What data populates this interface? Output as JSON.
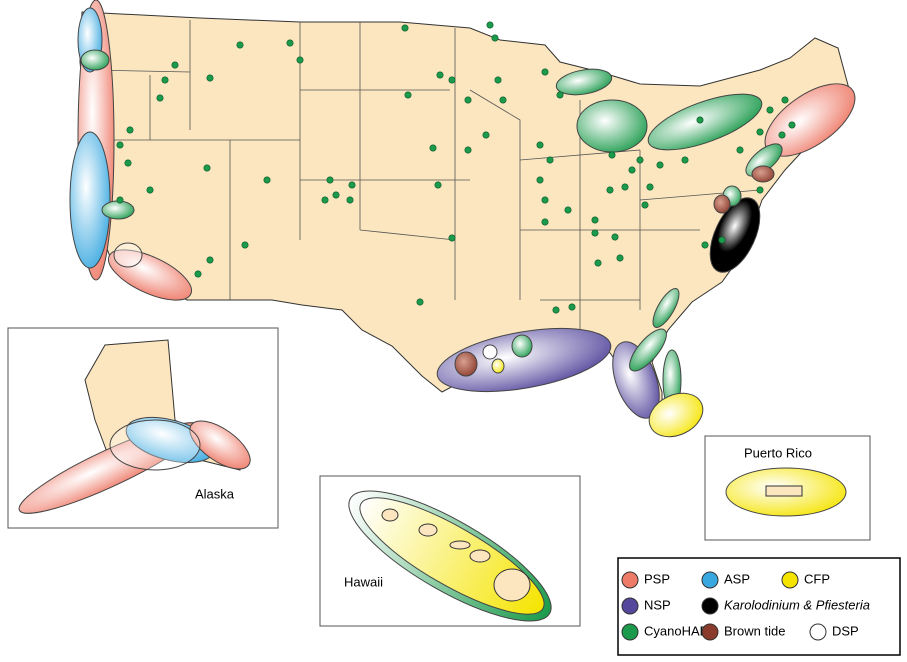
{
  "insets": {
    "alaska": "Alaska",
    "hawaii": "Hawaii",
    "puerto_rico": "Puerto Rico"
  },
  "legend": {
    "items": [
      {
        "label": "PSP",
        "color": "#ee7a68"
      },
      {
        "label": "ASP",
        "color": "#39a8e0"
      },
      {
        "label": "CFP",
        "color": "#f5e400"
      },
      {
        "label": "NSP",
        "color": "#54479c"
      },
      {
        "label": "Karolodinium & Pfiesteria",
        "color": "#000000"
      },
      {
        "label": "CyanoHABs",
        "color": "#1b9a4b"
      },
      {
        "label": "Brown tide",
        "color": "#8a3b2c"
      },
      {
        "label": "DSP",
        "color": "#ffffff"
      }
    ]
  }
}
